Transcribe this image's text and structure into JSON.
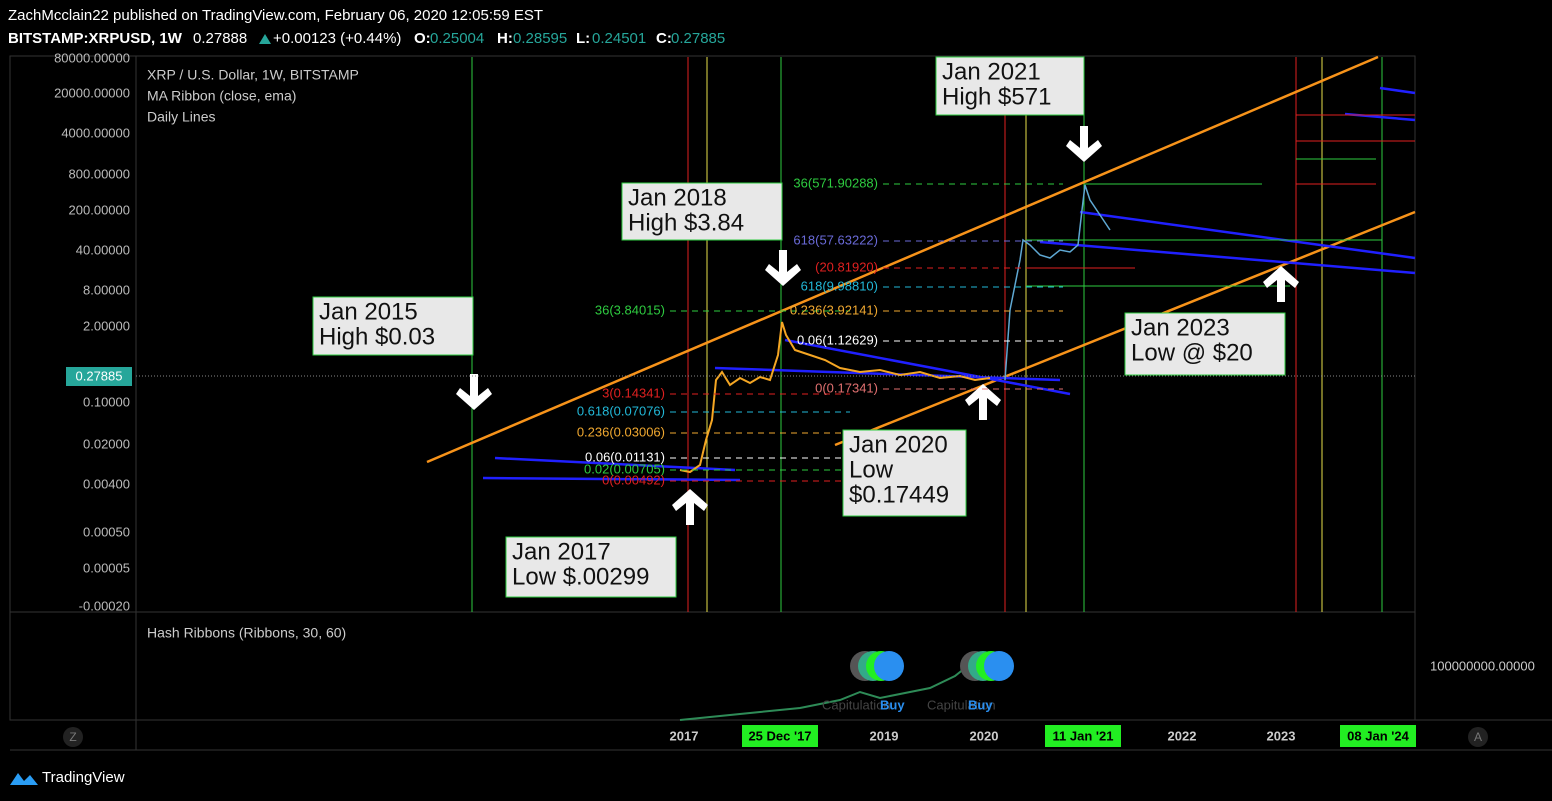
{
  "header": {
    "line1": "ZachMcclain22 published on TradingView.com, February 06, 2020 12:05:59 EST",
    "symbol": "BITSTAMP:XRPUSD, 1W",
    "last": "0.27888",
    "change": "+0.00123 (+0.44%)",
    "o_label": "O:",
    "o": "0.25004",
    "h_label": "H:",
    "h": "0.28595",
    "l_label": "L:",
    "l": "0.24501",
    "c_label": "C:",
    "c": "0.27885"
  },
  "legend": [
    "XRP / U.S. Dollar, 1W, BITSTAMP",
    "MA Ribbon (close, ema)",
    "Daily Lines"
  ],
  "price_axis": [
    "80000.00000",
    "20000.00000",
    "4000.00000",
    "800.00000",
    "200.00000",
    "40.00000",
    "8.00000",
    "2.00000",
    "0.10000",
    "0.02000",
    "0.00400",
    "0.00050",
    "0.00005",
    "-0.00020"
  ],
  "price_tag": "0.27885",
  "annotations": [
    [
      "Jan 2015",
      "High $0.03"
    ],
    [
      "Jan 2017",
      "Low $.00299"
    ],
    [
      "Jan 2018",
      "High $3.84"
    ],
    [
      "Jan 2020",
      "Low",
      "$0.17449"
    ],
    [
      "Jan 2021",
      "High $571"
    ],
    [
      "Jan 2023",
      "Low @ $20"
    ]
  ],
  "fib_labels": [
    "36(571.90288)",
    "618(57.63222)",
    "(20.81920)",
    "618(9.98810)",
    "36(3.84015)",
    "0.236(3.92141)",
    "0.06(1.12629)",
    "3(0.14341)",
    "0.618(0.07076)",
    "0.236(0.03006)",
    "0.06(0.01131)",
    "0.02(0.00705)",
    "0(0.00492)",
    "0(0.17341)"
  ],
  "time_axis": [
    "2017",
    "25 Dec '17",
    "2019",
    "2020",
    "11 Jan '21",
    "2022",
    "2023",
    "08 Jan '24"
  ],
  "axis_buttons": [
    "Z",
    "A"
  ],
  "lower_pane": {
    "title": "Hash Ribbons (Ribbons, 30, 60)",
    "axis": "100000000.00000",
    "labels": [
      "Capitulation",
      "Buy",
      "Capitulation",
      "Buy"
    ]
  },
  "footer": {
    "brand": "TradingView"
  }
}
